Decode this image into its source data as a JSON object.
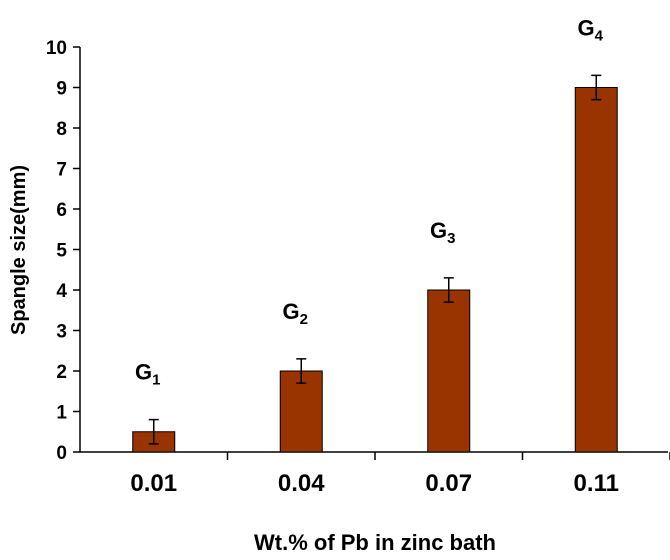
{
  "chart_data": {
    "type": "bar",
    "categories": [
      "0.01",
      "0.04",
      "0.07",
      "0.11"
    ],
    "values": [
      0.5,
      2.0,
      4.0,
      9.0
    ],
    "error": [
      0.3,
      0.3,
      0.3,
      0.3
    ],
    "annotations": [
      {
        "base": "G",
        "sub": "1"
      },
      {
        "base": "G",
        "sub": "2"
      },
      {
        "base": "G",
        "sub": "3"
      },
      {
        "base": "G",
        "sub": "4"
      }
    ],
    "title": "",
    "xlabel": "Wt.% of Pb in zinc bath",
    "ylabel": "Spangle size(mm)",
    "ylim": [
      0,
      10
    ],
    "yticks": [
      "0",
      "1",
      "2",
      "3",
      "4",
      "5",
      "6",
      "7",
      "8",
      "9",
      "10"
    ],
    "grid": false,
    "legend": "none",
    "colors": {
      "bar_fill": "#993300",
      "bar_stroke": "#000000",
      "axis": "#000000"
    }
  }
}
